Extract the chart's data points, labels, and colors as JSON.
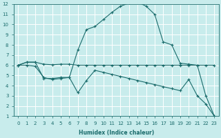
{
  "xlabel": "Humidex (Indice chaleur)",
  "bg_color": "#c8ecec",
  "grid_color": "#d4d4d4",
  "line_color": "#1a6b6b",
  "xlim": [
    -0.5,
    23.5
  ],
  "ylim": [
    1,
    12
  ],
  "xticks": [
    0,
    1,
    2,
    3,
    4,
    5,
    6,
    7,
    8,
    9,
    10,
    11,
    12,
    13,
    14,
    15,
    16,
    17,
    18,
    19,
    20,
    21,
    22,
    23
  ],
  "yticks": [
    1,
    2,
    3,
    4,
    5,
    6,
    7,
    8,
    9,
    10,
    11,
    12
  ],
  "line1_x": [
    0,
    1,
    2,
    3,
    4,
    5,
    6,
    7,
    8,
    9,
    10,
    11,
    12,
    13,
    14,
    15,
    16,
    17,
    18,
    19,
    20,
    21,
    22,
    23
  ],
  "line1_y": [
    6.0,
    6.3,
    6.3,
    6.1,
    6.05,
    6.1,
    6.1,
    6.0,
    6.0,
    6.0,
    6.0,
    6.0,
    6.0,
    6.0,
    6.0,
    6.0,
    6.0,
    6.0,
    6.0,
    6.0,
    6.0,
    6.0,
    6.0,
    6.0
  ],
  "line2_x": [
    0,
    1,
    2,
    3,
    4,
    5,
    6,
    7,
    8,
    9,
    10,
    11,
    12,
    13,
    14,
    15,
    16,
    17,
    18,
    19,
    20,
    21,
    22,
    23
  ],
  "line2_y": [
    6.0,
    6.3,
    6.3,
    4.7,
    4.7,
    4.8,
    4.8,
    7.5,
    9.5,
    9.8,
    10.5,
    11.2,
    11.8,
    12.1,
    12.2,
    11.8,
    11.0,
    8.3,
    8.0,
    6.2,
    6.1,
    6.0,
    3.0,
    1.0
  ],
  "line3_x": [
    0,
    1,
    2,
    3,
    4,
    5,
    6,
    7,
    8,
    9,
    10,
    11,
    12,
    13,
    14,
    15,
    16,
    17,
    18,
    19,
    20,
    21,
    22,
    23
  ],
  "line3_y": [
    6.0,
    6.0,
    5.9,
    4.8,
    4.6,
    4.7,
    4.8,
    3.3,
    4.5,
    5.5,
    5.3,
    5.1,
    4.9,
    4.7,
    4.5,
    4.3,
    4.1,
    3.9,
    3.7,
    3.5,
    4.6,
    3.0,
    2.2,
    1.0
  ]
}
